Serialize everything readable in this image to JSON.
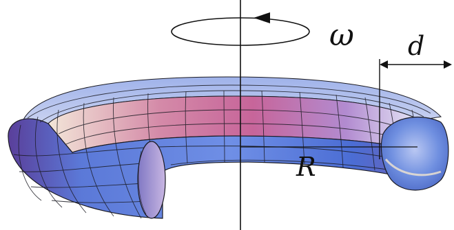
{
  "labels": {
    "omega": "ω",
    "d": "d",
    "R": "R"
  },
  "colors": {
    "background": "#ffffff",
    "axis": "#111111",
    "mesh": "#1a1a22",
    "outer_blue": "#4f73d8",
    "outer_purple": "#5a3f9a",
    "inner_pink": "#d77aa0",
    "inner_cream": "#f4eadc",
    "cap_blue": "#6d8fe0"
  }
}
